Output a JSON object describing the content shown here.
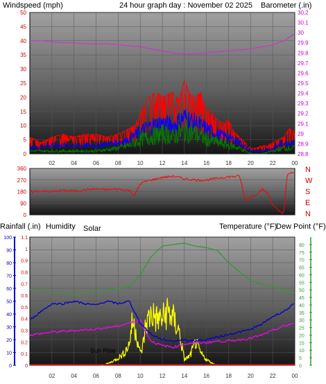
{
  "header": {
    "title": "24 hour graph day : November 02 2025",
    "left_label": "Windspeed (mph)",
    "right_label": "Barometer (.in)"
  },
  "colors": {
    "wind": "#ff0000",
    "gust": "#ff0000",
    "avg": "#0000ff",
    "low": "#008000",
    "baro": "#cc33cc",
    "dir": "#ff0000",
    "rain": "#cc0000",
    "humidity": "#0000cc",
    "solar": "#ffff00",
    "temp": "#339933",
    "dew": "#ff00ff",
    "title": "#ffff00",
    "axis_red": "#cc0000",
    "axis_magenta": "#cc00cc"
  },
  "chart_data": [
    {
      "type": "line",
      "title": "24 hour graph day : November 02 2025",
      "ylabel": "Windspeed (mph)",
      "y2label": "Barometer (.in)",
      "x_ticks": [
        "02",
        "04",
        "06",
        "08",
        "10",
        "12",
        "14",
        "16",
        "18",
        "20",
        "22",
        "00"
      ],
      "xlim": [
        0,
        24
      ],
      "ylim": [
        0,
        50
      ],
      "y_ticks": [
        "0",
        "5",
        "10",
        "15",
        "20",
        "25",
        "30",
        "35",
        "40",
        "45",
        "50"
      ],
      "y2lim": [
        28.8,
        30.2
      ],
      "y2_ticks": [
        "28.8",
        "28.9",
        "29",
        "29.1",
        "29.2",
        "29.3",
        "29.4",
        "29.5",
        "29.6",
        "29.7",
        "29.8",
        "29.9",
        "30",
        "30.1",
        "30.2"
      ],
      "series": [
        {
          "name": "gust",
          "axis": "left",
          "x": [
            0,
            1,
            2,
            3,
            4,
            5,
            6,
            7,
            8,
            9,
            9.5,
            10,
            10.5,
            11,
            11.5,
            12,
            12.5,
            13,
            13.5,
            14,
            14.5,
            15,
            15.5,
            16,
            16.5,
            17,
            17.5,
            18,
            18.5,
            19,
            19.5,
            20,
            20.5,
            21,
            21.5,
            22,
            22.5,
            23,
            23.5,
            24
          ],
          "y": [
            6,
            4,
            6,
            7,
            6,
            7,
            7,
            6,
            7,
            9,
            10,
            14,
            19,
            21,
            22,
            20,
            21,
            22,
            19,
            26,
            21,
            20,
            22,
            16,
            15,
            12,
            11,
            12,
            8,
            6,
            4,
            2,
            2,
            3,
            3,
            4,
            5,
            6,
            9,
            8
          ]
        },
        {
          "name": "average",
          "axis": "left",
          "x": [
            0,
            2,
            4,
            6,
            8,
            9,
            10,
            11,
            12,
            13,
            14,
            15,
            16,
            17,
            18,
            19,
            20,
            21,
            22,
            23,
            24
          ],
          "y": [
            2,
            3,
            3,
            3,
            4,
            5,
            8,
            10,
            11,
            10,
            13,
            11,
            9,
            7,
            6,
            4,
            1,
            1,
            2,
            4,
            4
          ]
        },
        {
          "name": "low",
          "axis": "left",
          "x": [
            0,
            2,
            4,
            6,
            8,
            9,
            10,
            11,
            12,
            13,
            14,
            15,
            16,
            17,
            18,
            19,
            20,
            21,
            22,
            23,
            24
          ],
          "y": [
            1,
            1,
            1,
            1,
            2,
            3,
            5,
            6,
            7,
            6,
            8,
            7,
            5,
            4,
            3,
            2,
            0,
            0,
            1,
            2,
            2
          ]
        },
        {
          "name": "barometer",
          "axis": "right",
          "x": [
            0,
            1,
            2,
            3,
            4,
            5,
            6,
            7,
            8,
            9,
            10,
            11,
            12,
            13,
            14,
            15,
            16,
            17,
            18,
            19,
            20,
            21,
            22,
            23,
            24
          ],
          "y": [
            29.92,
            29.92,
            29.91,
            29.9,
            29.9,
            29.89,
            29.89,
            29.89,
            29.88,
            29.87,
            29.86,
            29.84,
            29.82,
            29.8,
            29.79,
            29.79,
            29.8,
            29.81,
            29.82,
            29.83,
            29.84,
            29.86,
            29.88,
            29.92,
            29.99
          ]
        }
      ]
    },
    {
      "type": "line",
      "ylabel_right": [
        "N",
        "W",
        "S",
        "E",
        "N"
      ],
      "x_ticks": [
        "02",
        "04",
        "06",
        "08",
        "10",
        "12",
        "14",
        "16",
        "18",
        "20",
        "22",
        "00"
      ],
      "xlim": [
        0,
        24
      ],
      "ylim": [
        0,
        360
      ],
      "y_ticks": [
        "0",
        "90",
        "180",
        "270",
        "360"
      ],
      "series": [
        {
          "name": "wind direction",
          "x": [
            0,
            1,
            2,
            3,
            4,
            5,
            6,
            7,
            8,
            9,
            9.5,
            10,
            10.5,
            11,
            12,
            13,
            14,
            15,
            16,
            17,
            18,
            19,
            19.2,
            19.4,
            19.6,
            20,
            20.5,
            21,
            21.5,
            22,
            22.5,
            23,
            23.3,
            23.6,
            24
          ],
          "y": [
            180,
            185,
            180,
            190,
            185,
            195,
            200,
            195,
            200,
            190,
            150,
            240,
            260,
            270,
            290,
            300,
            280,
            270,
            270,
            285,
            295,
            300,
            230,
            150,
            110,
            140,
            160,
            200,
            175,
            80,
            30,
            15,
            300,
            330,
            320
          ]
        }
      ]
    },
    {
      "type": "line",
      "ylabel_left": "Rainfall (.in)",
      "ylabel_left2": "Humidity",
      "ylabel_solar": "Solar",
      "ylabel_right": "Temperature (°F)",
      "ylabel_right2": "Dew Point (°F)",
      "annotation": "Sun Rise",
      "x_ticks": [
        "02",
        "04",
        "06",
        "08",
        "10",
        "12",
        "14",
        "16",
        "18",
        "20",
        "22",
        "00"
      ],
      "xlim": [
        0,
        24
      ],
      "ylim_humidity": [
        0,
        100
      ],
      "humidity_ticks": [
        "0",
        "10",
        "20",
        "30",
        "40",
        "50",
        "60",
        "70",
        "80",
        "90",
        "100"
      ],
      "ylim_rain": [
        0,
        1.1
      ],
      "rain_ticks": [
        "0",
        "0.1",
        "0.2",
        "0.3",
        "0.4",
        "0.5",
        "0.6",
        "0.7",
        "0.8",
        "0.9",
        "1",
        "1.1"
      ],
      "ylim_temp": [
        0,
        85
      ],
      "temp_ticks": [
        "0",
        "5",
        "10",
        "15",
        "20",
        "25",
        "30",
        "35",
        "40",
        "45",
        "50",
        "55",
        "60",
        "65",
        "70",
        "75",
        "80"
      ],
      "series": [
        {
          "name": "temperature",
          "axis": "temp",
          "x": [
            0,
            1,
            2,
            3,
            4,
            5,
            6,
            7,
            8,
            9,
            10,
            11,
            12,
            13,
            14,
            15,
            16,
            17,
            18,
            19,
            20,
            21,
            22,
            23,
            24
          ],
          "y": [
            50,
            50,
            48,
            48,
            47,
            48,
            49,
            50,
            51,
            52,
            60,
            72,
            79,
            80,
            81,
            79,
            78,
            76,
            68,
            62,
            56,
            54,
            52,
            50,
            48
          ]
        },
        {
          "name": "dew point",
          "axis": "temp",
          "x": [
            0,
            2,
            4,
            6,
            8,
            9,
            10,
            10.5,
            11,
            12,
            13,
            14,
            15,
            16,
            17,
            18,
            19,
            20,
            21,
            22,
            23,
            24
          ],
          "y": [
            20,
            22,
            23,
            24,
            26,
            28,
            30,
            22,
            16,
            13,
            12,
            14,
            15,
            15,
            16,
            16,
            17,
            18,
            20,
            23,
            26,
            28
          ]
        },
        {
          "name": "humidity",
          "axis": "humidity",
          "x": [
            0,
            1,
            2,
            3,
            4,
            5,
            6,
            7,
            8,
            9,
            10,
            11,
            12,
            13,
            14,
            15,
            16,
            17,
            18,
            19,
            20,
            21,
            22,
            23,
            24
          ],
          "y": [
            35,
            42,
            48,
            48,
            50,
            48,
            47,
            50,
            48,
            50,
            33,
            24,
            20,
            19,
            20,
            19,
            20,
            22,
            24,
            26,
            28,
            32,
            38,
            42,
            48
          ]
        },
        {
          "name": "solar",
          "axis": "humidity",
          "x": [
            6.5,
            7.2,
            7.8,
            8.5,
            9.0,
            9.3,
            9.6,
            10.0,
            10.2,
            10.5,
            11.0,
            11.5,
            12.0,
            12.5,
            13.0,
            13.5,
            14.0,
            14.5,
            15.0,
            15.5,
            16.0,
            16.5,
            17.0
          ],
          "y": [
            0,
            2,
            5,
            10,
            18,
            38,
            30,
            10,
            15,
            35,
            45,
            40,
            40,
            47,
            40,
            30,
            5,
            8,
            20,
            10,
            5,
            2,
            0
          ]
        },
        {
          "name": "rainfall",
          "axis": "rain",
          "x": [
            0,
            24
          ],
          "y": [
            0,
            0
          ]
        }
      ]
    }
  ]
}
